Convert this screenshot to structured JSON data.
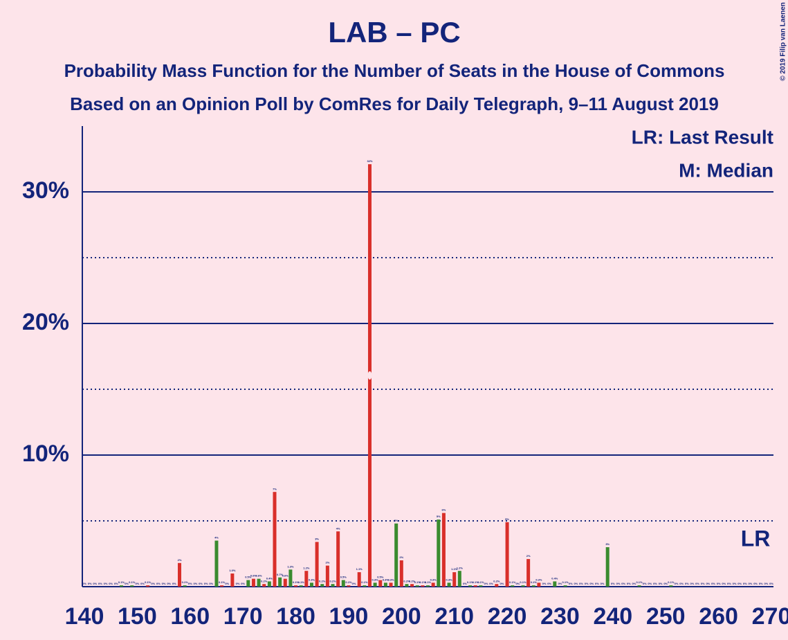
{
  "chart_data": {
    "type": "bar",
    "title": "LAB – PC",
    "subtitle": "Probability Mass Function for the Number of Seats in the House of Commons",
    "subtitle2": "Based on an Opinion Poll by ComRes for Daily Telegraph, 9–11 August 2019",
    "copyright": "© 2019 Filip van Laenen",
    "legend_lr": "LR: Last Result",
    "legend_median": "M: Median",
    "lr_label": "LR",
    "last_result": 267,
    "median": 194,
    "colors": [
      "#d92f2a",
      "#3a8b2f"
    ],
    "x": [
      140,
      141,
      142,
      143,
      144,
      145,
      146,
      147,
      148,
      149,
      150,
      151,
      152,
      153,
      154,
      155,
      156,
      157,
      158,
      159,
      160,
      161,
      162,
      163,
      164,
      165,
      166,
      167,
      168,
      169,
      170,
      171,
      172,
      173,
      174,
      175,
      176,
      177,
      178,
      179,
      180,
      181,
      182,
      183,
      184,
      185,
      186,
      187,
      188,
      189,
      190,
      191,
      192,
      193,
      194,
      195,
      196,
      197,
      198,
      199,
      200,
      201,
      202,
      203,
      204,
      205,
      206,
      207,
      208,
      209,
      210,
      211,
      212,
      213,
      214,
      215,
      216,
      217,
      218,
      219,
      220,
      221,
      222,
      223,
      224,
      225,
      226,
      227,
      228,
      229,
      230,
      231,
      232,
      233,
      234,
      235,
      236,
      237,
      238,
      239,
      240,
      241,
      242,
      243,
      244,
      245,
      246,
      247,
      248,
      249,
      250,
      251,
      252,
      253,
      254,
      255,
      256,
      257,
      258,
      259,
      260,
      261,
      262,
      263,
      264,
      265,
      266,
      267,
      268,
      269,
      270
    ],
    "values": [
      0,
      0,
      0,
      0,
      0,
      0,
      0,
      0.1,
      0,
      0.1,
      0,
      0,
      0.1,
      0,
      0,
      0,
      0,
      0,
      1.8,
      0.1,
      0,
      0,
      0,
      0,
      0,
      3.5,
      0.1,
      0,
      1.0,
      0,
      0,
      0.5,
      0.6,
      0.6,
      0.2,
      0.4,
      7.2,
      0.7,
      0.6,
      1.3,
      0.1,
      0.1,
      1.2,
      0.3,
      3.4,
      0.2,
      1.6,
      0.2,
      4.2,
      0.5,
      0.1,
      0,
      1.1,
      0.1,
      32.1,
      0.3,
      0.5,
      0.3,
      0.3,
      4.8,
      2.0,
      0.2,
      0.2,
      0.1,
      0.1,
      0.1,
      0.3,
      5.1,
      5.6,
      0.3,
      1.1,
      1.2,
      0,
      0.1,
      0.1,
      0.1,
      0,
      0,
      0.2,
      0,
      4.9,
      0.1,
      0,
      0.1,
      2.1,
      0.1,
      0.3,
      0,
      0,
      0.4,
      0,
      0.1,
      0,
      0,
      0,
      0,
      0,
      0,
      0,
      3.0,
      0,
      0,
      0,
      0,
      0,
      0.1,
      0,
      0,
      0,
      0,
      0,
      0.1,
      0,
      0,
      0,
      0,
      0,
      0,
      0,
      0,
      0,
      0,
      0,
      0,
      0,
      0,
      0,
      0,
      0,
      0,
      0
    ],
    "value_labels": [
      "0%",
      "0%",
      "0%",
      "0%",
      "0%",
      "0%",
      "0%",
      "0.1%",
      "0%",
      "0.1%",
      "0%",
      "0%",
      "0.1%",
      "0%",
      "0%",
      "0%",
      "0%",
      "0%",
      "2%",
      "0.1%",
      "0%",
      "0%",
      "0%",
      "0%",
      "0%",
      "4%",
      "0.1%",
      "0%",
      "1.0%",
      "0%",
      "0%",
      "0.5%",
      "0.6%",
      "0.6%",
      "0.2%",
      "0.4%",
      "7%",
      "0.7%",
      "0.6%",
      "1.3%",
      "0.1%",
      "0.1%",
      "1.2%",
      "0.3%",
      "3%",
      "0.2%",
      "2%",
      "0.2%",
      "4%",
      "0.5%",
      "0.1%",
      "0%",
      "1.1%",
      "0.1%",
      "32%",
      "0.3%",
      "0.5%",
      "0.3%",
      "0.3%",
      "5%",
      "2%",
      "0.2%",
      "0.2%",
      "0.1%",
      "0.1%",
      "0.1%",
      "0.3%",
      "5%",
      "6%",
      "0.3%",
      "1.1%",
      "1.2%",
      "0%",
      "0.1%",
      "0.1%",
      "0.1%",
      "0%",
      "0%",
      "0.2%",
      "0%",
      "5%",
      "0.1%",
      "0%",
      "0.1%",
      "2%",
      "0.1%",
      "0.3%",
      "0%",
      "0%",
      "0.4%",
      "0%",
      "0.1%",
      "0%",
      "0%",
      "0%",
      "0%",
      "0%",
      "0%",
      "0%",
      "3%",
      "0%",
      "0%",
      "0%",
      "0%",
      "0%",
      "0.1%",
      "0%",
      "0%",
      "0%",
      "0%",
      "0%",
      "0.1%",
      "0%",
      "0%",
      "0%",
      "0%",
      "0%",
      "0%",
      "0%",
      "0%",
      "0%",
      "0%",
      "0%",
      "0%",
      "0%",
      "0%",
      "0%",
      "0%",
      "0%",
      "0%",
      "0%"
    ],
    "xlim": [
      140,
      270
    ],
    "xticks": [
      140,
      150,
      160,
      170,
      180,
      190,
      200,
      210,
      220,
      230,
      240,
      250,
      260,
      270
    ],
    "ylim": [
      0,
      35
    ],
    "yticks": [
      {
        "value": 10,
        "label": "10%"
      },
      {
        "value": 20,
        "label": "20%"
      },
      {
        "value": 30,
        "label": "30%"
      }
    ],
    "minor_yticks": [
      5,
      15,
      25
    ],
    "grid": true
  }
}
